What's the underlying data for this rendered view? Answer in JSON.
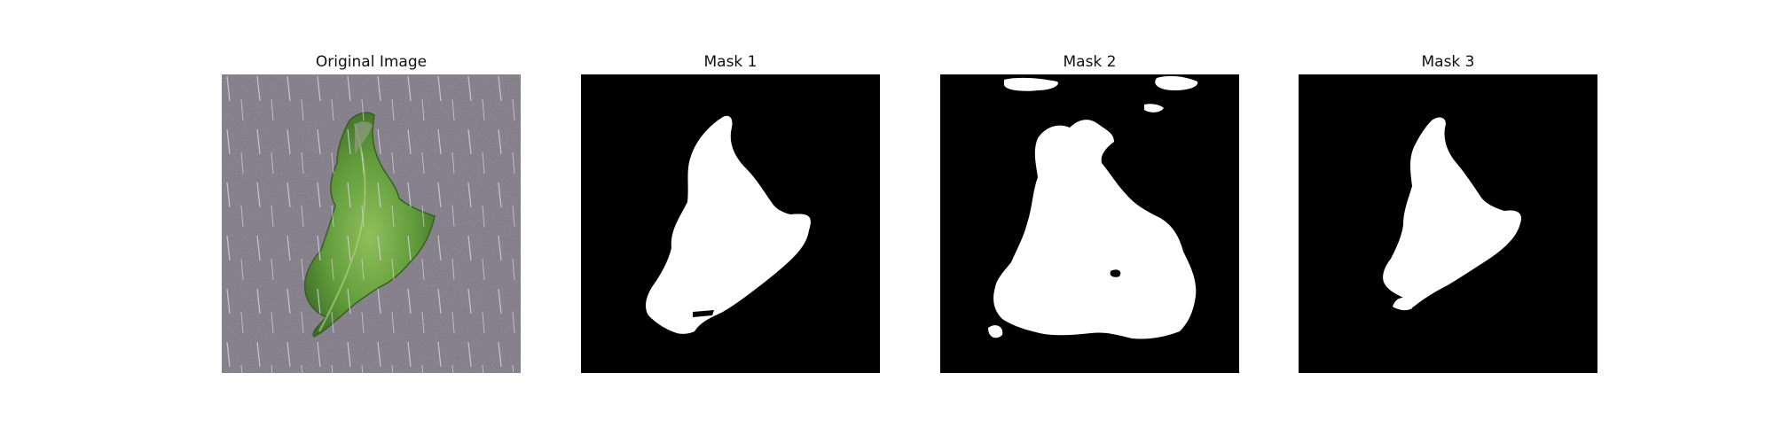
{
  "panels": [
    {
      "title": "Original Image",
      "kind": "photo"
    },
    {
      "title": "Mask 1",
      "kind": "mask"
    },
    {
      "title": "Mask 2",
      "kind": "mask"
    },
    {
      "title": "Mask 3",
      "kind": "mask"
    }
  ]
}
